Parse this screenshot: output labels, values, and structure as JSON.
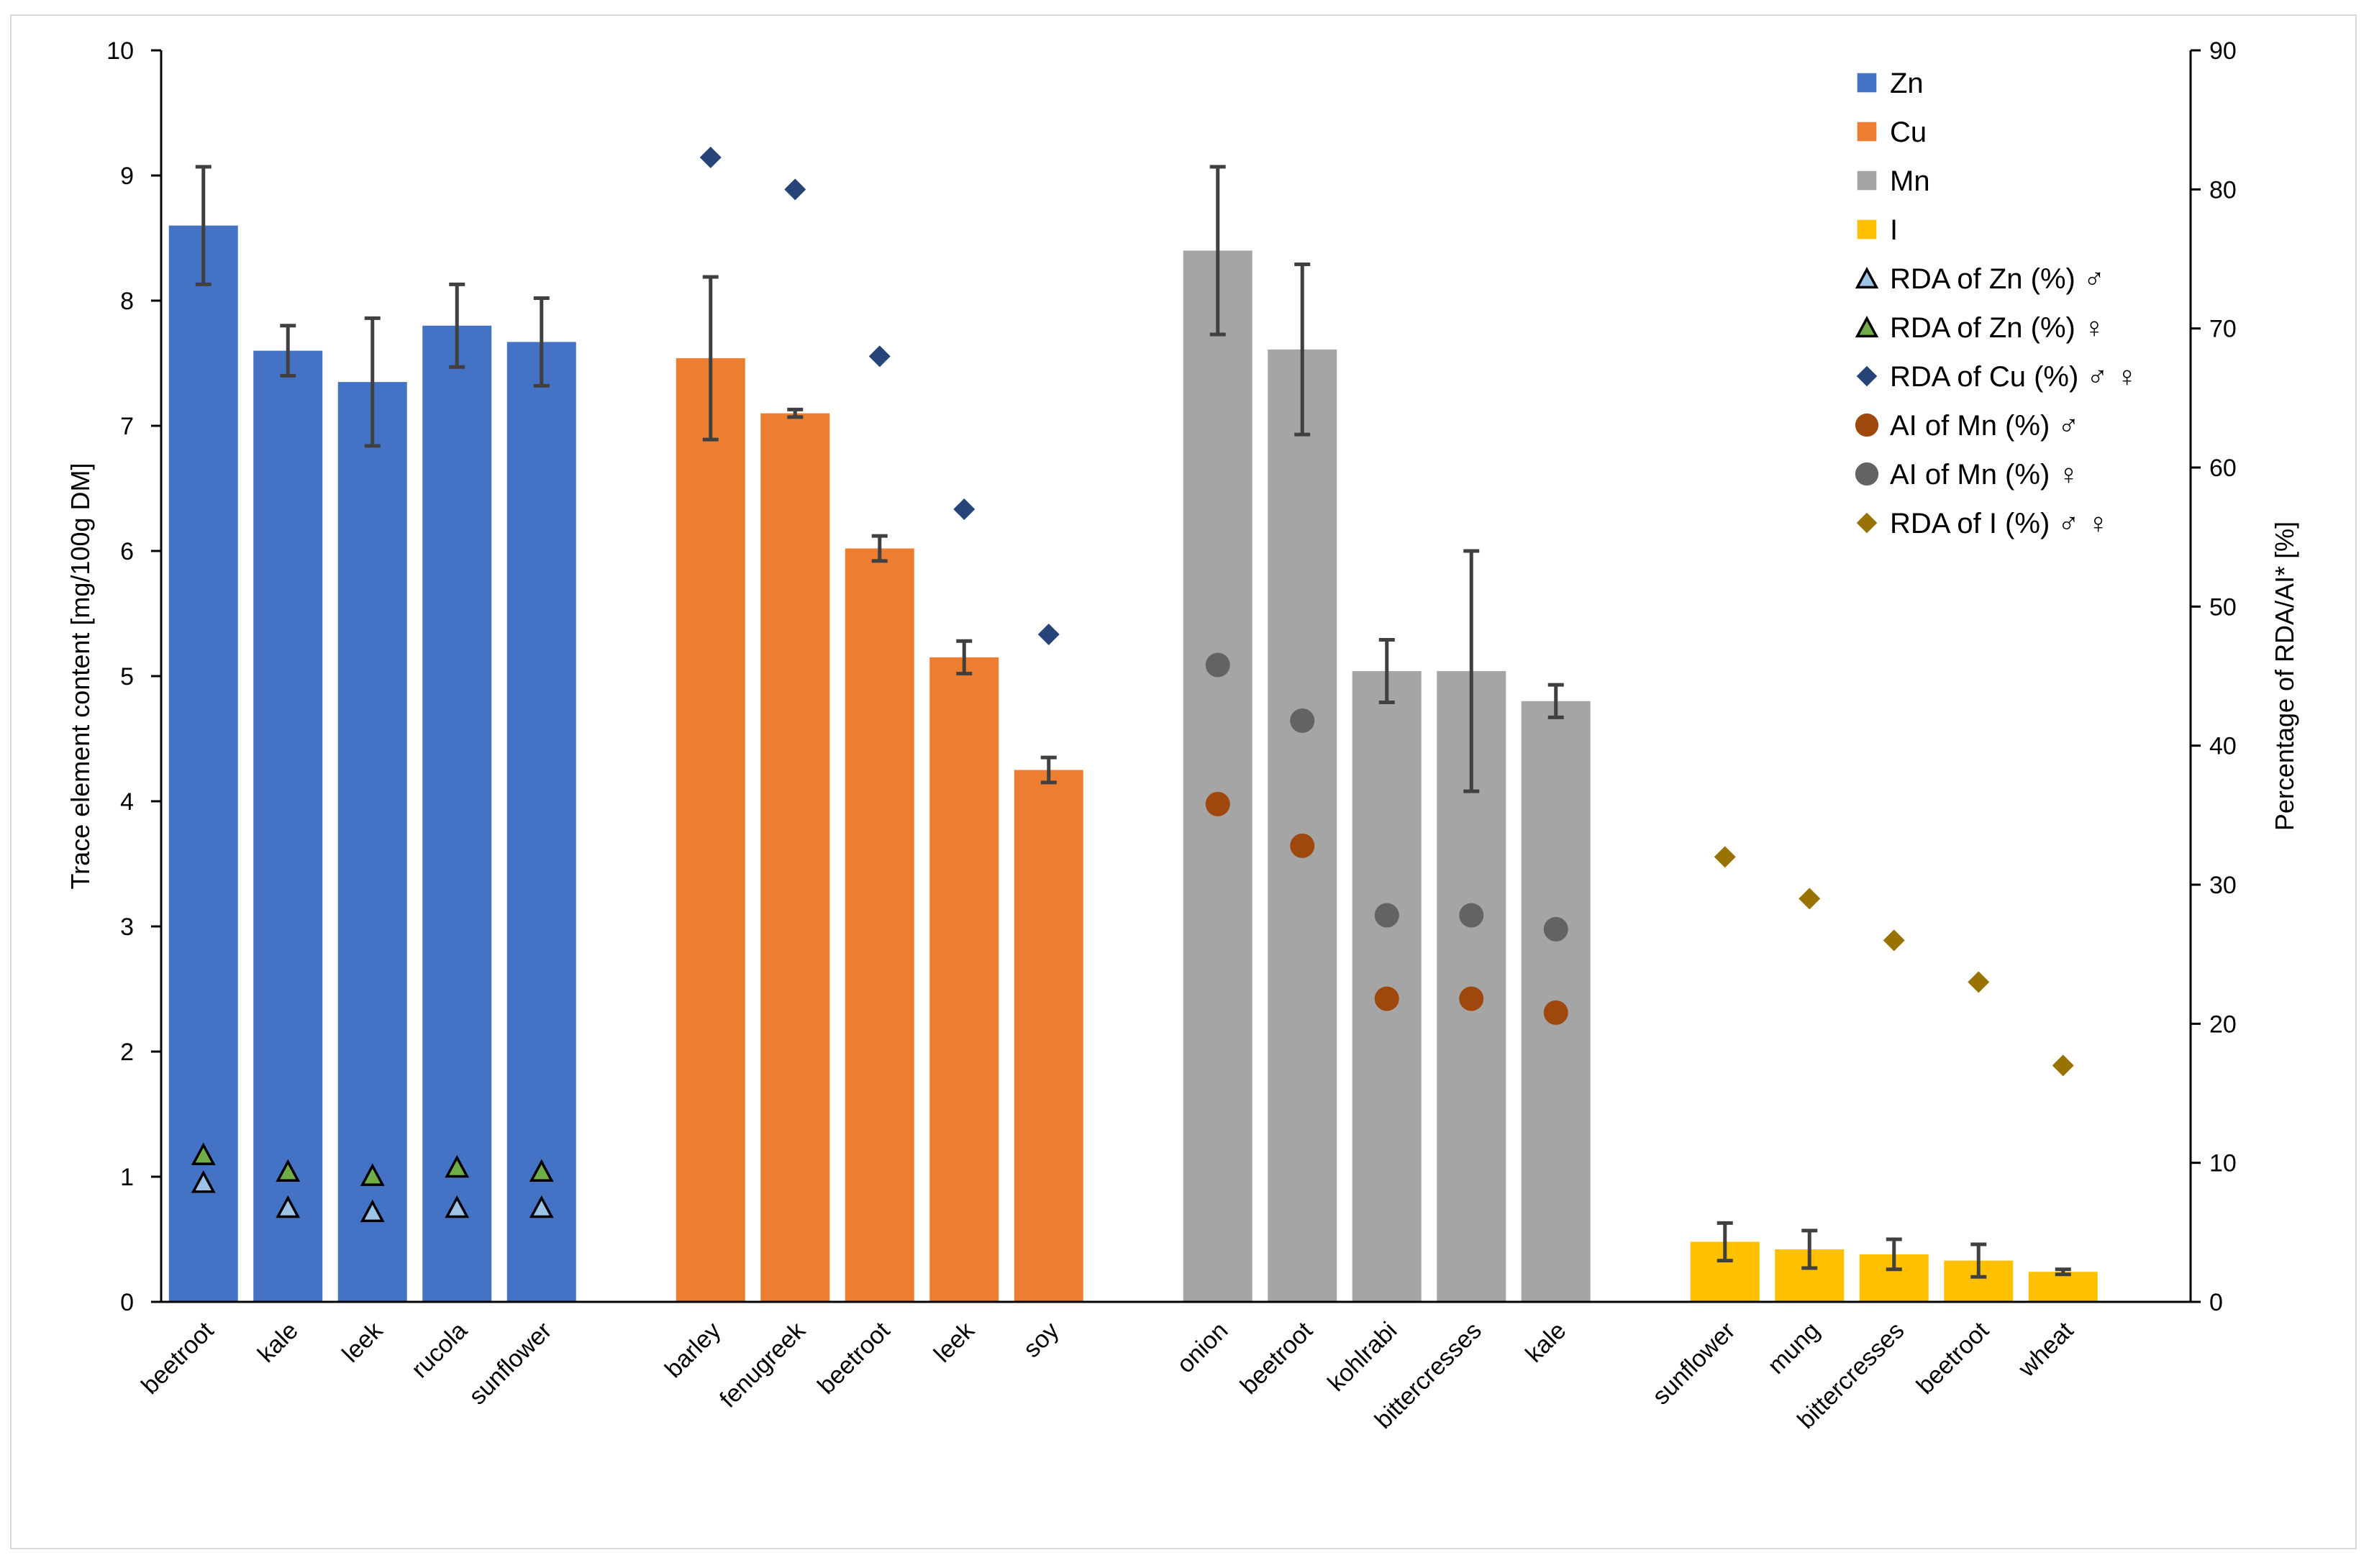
{
  "chart_data": {
    "type": "bar",
    "ylabel": "Trace element content [mg/100g DM]",
    "y2label": "Percentage of RDA/AI* [%]",
    "ylim": [
      0,
      10
    ],
    "y2lim": [
      0,
      90
    ],
    "yticks": [
      "0",
      "1",
      "2",
      "3",
      "4",
      "5",
      "6",
      "7",
      "8",
      "9",
      "10"
    ],
    "y2ticks": [
      "0",
      "10",
      "20",
      "30",
      "40",
      "50",
      "60",
      "70",
      "80",
      "90"
    ],
    "groups": [
      {
        "element": "Zn",
        "color": "#4472c4",
        "categories": [
          "beetroot",
          "kale",
          "leek",
          "rucola",
          "sunflower"
        ],
        "values": [
          8.6,
          7.6,
          7.35,
          7.8,
          7.67
        ],
        "errors": [
          0.47,
          0.2,
          0.51,
          0.33,
          0.35
        ]
      },
      {
        "element": "Cu",
        "color": "#ed7d31",
        "categories": [
          "barley",
          "fenugreek",
          "beetroot",
          "leek",
          "soy"
        ],
        "values": [
          7.54,
          7.1,
          6.02,
          5.15,
          4.25
        ],
        "errors": [
          0.65,
          0.03,
          0.1,
          0.13,
          0.1
        ]
      },
      {
        "element": "Mn",
        "color": "#a5a5a5",
        "categories": [
          "onion",
          "beetroot",
          "kohlrabi",
          "bittercresses",
          "kale"
        ],
        "values": [
          8.4,
          7.61,
          5.04,
          5.04,
          4.8
        ],
        "errors": [
          0.67,
          0.68,
          0.25,
          0.96,
          0.13
        ]
      },
      {
        "element": "I",
        "color": "#ffc000",
        "categories": [
          "sunflower",
          "mung",
          "bittercresses",
          "beetroot",
          "wheat"
        ],
        "values": [
          0.48,
          0.42,
          0.38,
          0.33,
          0.24
        ],
        "errors": [
          0.15,
          0.15,
          0.12,
          0.13,
          0.02
        ]
      }
    ],
    "markers": [
      {
        "name": "RDA of Zn (%) ♂",
        "symbol": "triangle",
        "fill": "#9dc3e6",
        "group": 0,
        "values": [
          8.6,
          6.8,
          6.5,
          6.8,
          6.8
        ]
      },
      {
        "name": "RDA of Zn (%) ♀",
        "symbol": "triangle",
        "fill": "#70ad47",
        "group": 0,
        "values": [
          10.6,
          9.4,
          9.1,
          9.7,
          9.4
        ]
      },
      {
        "name": "RDA of Cu (%) ♂ ♀",
        "symbol": "diamond",
        "fill": "#264478",
        "group": 1,
        "values": [
          82.3,
          80.0,
          68.0,
          57.0,
          48.0
        ]
      },
      {
        "name": "AI of Mn (%) ♂",
        "symbol": "circle",
        "fill": "#9e480e",
        "group": 2,
        "values": [
          35.8,
          32.8,
          21.8,
          21.8,
          20.8
        ]
      },
      {
        "name": "AI of Mn (%) ♀",
        "symbol": "circle",
        "fill": "#636363",
        "group": 2,
        "values": [
          45.8,
          41.8,
          27.8,
          27.8,
          26.8
        ]
      },
      {
        "name": "RDA of I (%) ♂ ♀",
        "symbol": "diamond",
        "fill": "#997300",
        "group": 3,
        "values": [
          32.0,
          29.0,
          26.0,
          23.0,
          17.0
        ]
      }
    ],
    "legend": {
      "placement": "top-right",
      "entries": [
        {
          "label": "Zn",
          "symbol": "square",
          "fill": "#4472c4"
        },
        {
          "label": "Cu",
          "symbol": "square",
          "fill": "#ed7d31"
        },
        {
          "label": "Mn",
          "symbol": "square",
          "fill": "#a5a5a5"
        },
        {
          "label": "I",
          "symbol": "square",
          "fill": "#ffc000"
        },
        {
          "label": "RDA of Zn (%) ♂",
          "symbol": "triangle",
          "fill": "#9dc3e6"
        },
        {
          "label": "RDA of Zn (%) ♀",
          "symbol": "triangle",
          "fill": "#70ad47"
        },
        {
          "label": "RDA of Cu (%) ♂ ♀",
          "symbol": "diamond",
          "fill": "#264478"
        },
        {
          "label": "AI of Mn (%) ♂",
          "symbol": "circle",
          "fill": "#9e480e"
        },
        {
          "label": "AI of Mn (%) ♀",
          "symbol": "circle",
          "fill": "#636363"
        },
        {
          "label": "RDA of I (%) ♂ ♀",
          "symbol": "diamond",
          "fill": "#997300"
        }
      ]
    },
    "error_bar_color": "#404040",
    "axis_color": "#000000"
  }
}
